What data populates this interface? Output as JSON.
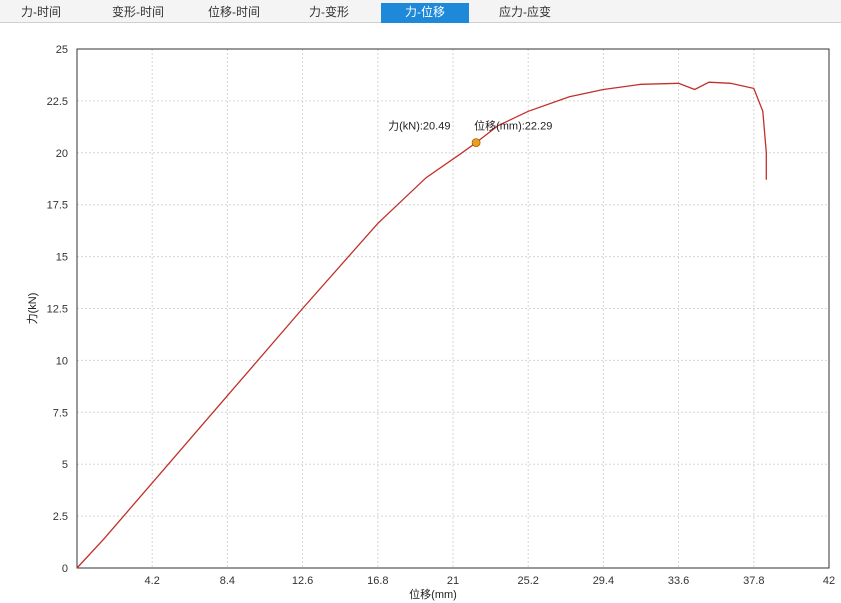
{
  "tabs": [
    {
      "label": "力-时间",
      "active": false
    },
    {
      "label": "变形-时间",
      "active": false
    },
    {
      "label": "位移-时间",
      "active": false
    },
    {
      "label": "力-变形",
      "active": false
    },
    {
      "label": "力-位移",
      "active": true
    },
    {
      "label": "应力-应变",
      "active": false
    }
  ],
  "colors": {
    "accent": "#1e88d9",
    "series": "#c0302a",
    "marker": "#e8a020"
  },
  "chart_data": {
    "type": "line",
    "xlabel": "位移(mm)",
    "ylabel": "力(kN)",
    "xlim": [
      0,
      42
    ],
    "ylim": [
      0,
      25
    ],
    "x_ticks": [
      "4.2",
      "8.4",
      "12.6",
      "16.8",
      "21",
      "25.2",
      "29.4",
      "33.6",
      "37.8",
      "42"
    ],
    "y_ticks": [
      "0",
      "2.5",
      "5",
      "7.5",
      "10",
      "12.5",
      "15",
      "17.5",
      "20",
      "22.5",
      "25"
    ],
    "grid": true,
    "series": [
      {
        "x": [
          0,
          1.5,
          4.2,
          8.4,
          12.6,
          16.8,
          19.5,
          21.5,
          22.29,
          23.5,
          25.2,
          27.5,
          29.4,
          31.5,
          33.6,
          34.5,
          35.3,
          36.5,
          37.8,
          38.3,
          38.5,
          38.5
        ],
        "y": [
          0,
          1.4,
          4.1,
          8.3,
          12.5,
          16.6,
          18.8,
          20.0,
          20.49,
          21.3,
          22.0,
          22.7,
          23.05,
          23.3,
          23.35,
          23.05,
          23.4,
          23.35,
          23.1,
          22.0,
          20.0,
          18.7
        ]
      }
    ],
    "annotation": {
      "force_label": "力(kN):20.49",
      "disp_label": "位移(mm):22.29",
      "x": 22.29,
      "y": 20.49
    }
  }
}
